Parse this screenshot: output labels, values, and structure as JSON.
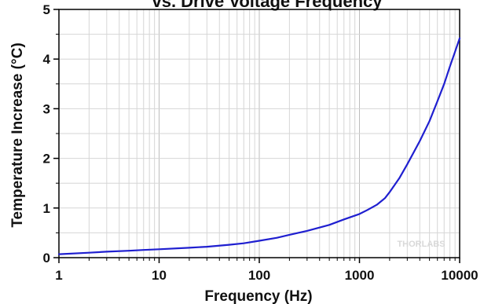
{
  "chart_data": {
    "type": "line",
    "title": "vs. Drive Voltage Frequency",
    "xlabel": "Frequency (Hz)",
    "ylabel": "Temperature Increase (°C)",
    "x_scale": "log",
    "xlim": [
      1,
      10000
    ],
    "ylim": [
      0,
      5
    ],
    "x_ticks": [
      1,
      10,
      100,
      1000,
      10000
    ],
    "x_tick_labels": [
      "1",
      "10",
      "100",
      "1000",
      "10000"
    ],
    "y_ticks": [
      0,
      1,
      2,
      3,
      4,
      5
    ],
    "y_tick_labels": [
      "0",
      "1",
      "2",
      "3",
      "4",
      "5"
    ],
    "grid": true,
    "watermark": "THORLABS",
    "series": [
      {
        "color": "#1f1fd0",
        "x": [
          1,
          2,
          3,
          5,
          7,
          10,
          20,
          30,
          50,
          70,
          100,
          150,
          200,
          300,
          500,
          700,
          1000,
          1200,
          1500,
          1800,
          2000,
          2500,
          3000,
          4000,
          5000,
          6000,
          7000,
          8000,
          9000,
          10000
        ],
        "y": [
          0.07,
          0.1,
          0.12,
          0.14,
          0.155,
          0.17,
          0.2,
          0.22,
          0.26,
          0.29,
          0.34,
          0.4,
          0.46,
          0.54,
          0.66,
          0.77,
          0.88,
          0.96,
          1.07,
          1.2,
          1.32,
          1.6,
          1.88,
          2.35,
          2.75,
          3.15,
          3.5,
          3.85,
          4.15,
          4.42
        ]
      }
    ]
  }
}
